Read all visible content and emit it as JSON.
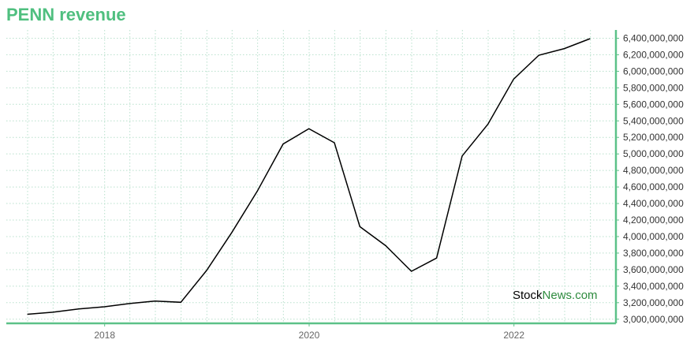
{
  "chart_data": {
    "type": "line",
    "title": "PENN revenue",
    "xlabel": "",
    "ylabel": "",
    "x": [
      "2017-03-31",
      "2017-06-30",
      "2017-09-30",
      "2017-12-31",
      "2018-03-31",
      "2018-06-30",
      "2018-09-30",
      "2018-12-31",
      "2019-03-31",
      "2019-06-30",
      "2019-09-30",
      "2019-12-31",
      "2020-03-31",
      "2020-06-30",
      "2020-09-30",
      "2020-12-31",
      "2021-03-31",
      "2021-06-30",
      "2021-09-30",
      "2021-12-31",
      "2022-03-31",
      "2022-06-30",
      "2022-09-30"
    ],
    "series": [
      {
        "values": [
          3060000000,
          3085000000,
          3125000000,
          3150000000,
          3190000000,
          3220000000,
          3205000000,
          3590000000,
          4050000000,
          4550000000,
          5120000000,
          5305000000,
          5135000000,
          4120000000,
          3890000000,
          3580000000,
          3740000000,
          4975000000,
          5360000000,
          5905000000,
          6195000000,
          6275000000,
          6395000000
        ]
      }
    ],
    "x_ticks": [
      "2018",
      "2020",
      "2022"
    ],
    "y_ticks": [
      "3,000,000,000",
      "3,200,000,000",
      "3,400,000,000",
      "3,600,000,000",
      "3,800,000,000",
      "4,000,000,000",
      "4,200,000,000",
      "4,400,000,000",
      "4,600,000,000",
      "4,800,000,000",
      "5,000,000,000",
      "5,200,000,000",
      "5,400,000,000",
      "5,600,000,000",
      "5,800,000,000",
      "6,000,000,000",
      "6,200,000,000",
      "6,400,000,000"
    ],
    "ylim": [
      2950000000,
      6500000000
    ],
    "xlim": [
      "2017-01-15",
      "2022-12-31"
    ],
    "grid": true,
    "y_axis_side": "right",
    "colors": {
      "line": "#000000",
      "axis": "#5cc188",
      "grid": "#b8e0cc",
      "title": "#4fbf7f"
    }
  },
  "watermark": {
    "stock": "Stock",
    "news": "News",
    "com": ".com"
  }
}
